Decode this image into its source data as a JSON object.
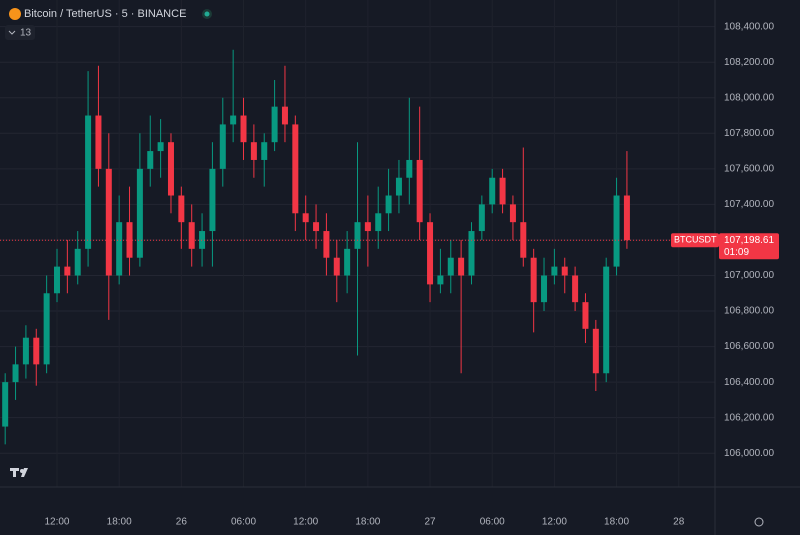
{
  "chart_data": {
    "type": "candlestick",
    "title": "Bitcoin / TetherUS · 5 · BINANCE",
    "indicators_label": "13",
    "symbol": "BTCUSDT",
    "last_price_label": "107,198.61",
    "countdown": "01:09",
    "up_color": "#089981",
    "down_color": "#f23645",
    "categories": [
      null,
      null,
      null,
      null,
      null,
      "12:00",
      null,
      null,
      null,
      null,
      null,
      "18:00",
      null,
      null,
      null,
      null,
      null,
      "26",
      null,
      null,
      null,
      null,
      null,
      "06:00",
      null,
      null,
      null,
      null,
      null,
      "12:00",
      null,
      null,
      null,
      null,
      null,
      "18:00",
      null,
      null,
      null,
      null,
      null,
      "27",
      null,
      null,
      null,
      null,
      null,
      "06:00",
      null,
      null,
      null,
      null,
      null,
      "12:00",
      null,
      null,
      null,
      null,
      null,
      "18:00",
      null,
      null,
      null,
      null,
      null,
      "28",
      null,
      null,
      null
    ],
    "open": [
      106150,
      106400,
      106500,
      106650,
      106500,
      106900,
      107050,
      107000,
      107150,
      107900,
      107600,
      107000,
      107300,
      107100,
      107600,
      107700,
      107750,
      107450,
      107300,
      107150,
      107250,
      107600,
      107850,
      107900,
      107750,
      107650,
      107750,
      107950,
      107850,
      107350,
      107300,
      107250,
      107100,
      107000,
      107150,
      107300,
      107250,
      107350,
      107450,
      107550,
      107650,
      107300,
      106950,
      107000,
      107100,
      107000,
      107250,
      107400,
      107550,
      107400,
      107300,
      107100,
      106850,
      107000,
      107050,
      107000,
      106850,
      106700,
      106450,
      107050,
      107450,
      null,
      null,
      null,
      null,
      null,
      null,
      null,
      null
    ],
    "high": [
      106450,
      106600,
      106720,
      106700,
      107000,
      107150,
      107200,
      107250,
      108150,
      108180,
      107800,
      107450,
      107500,
      107800,
      107900,
      107880,
      107800,
      107500,
      107400,
      107350,
      107750,
      108000,
      108270,
      108000,
      107850,
      107800,
      108100,
      108180,
      107900,
      107450,
      107400,
      107350,
      107200,
      107250,
      107750,
      107450,
      107500,
      107600,
      107650,
      108000,
      107950,
      107350,
      107150,
      107200,
      107200,
      107300,
      107450,
      107600,
      107600,
      107450,
      107720,
      107150,
      107100,
      107150,
      107100,
      107050,
      106900,
      106750,
      107100,
      107550,
      107700,
      null,
      null,
      null,
      null,
      null,
      null,
      null,
      null
    ],
    "low": [
      106050,
      106300,
      106420,
      106380,
      106450,
      106850,
      106900,
      106950,
      107050,
      107500,
      106750,
      106950,
      107000,
      107050,
      107500,
      107550,
      107350,
      107150,
      107050,
      107050,
      107050,
      107500,
      107750,
      107650,
      107550,
      107500,
      107700,
      107750,
      107250,
      107200,
      107150,
      107000,
      106850,
      106900,
      106550,
      107050,
      107150,
      107250,
      107350,
      107400,
      107200,
      106850,
      106900,
      106900,
      106450,
      106950,
      107200,
      107350,
      107350,
      107200,
      107050,
      106680,
      106800,
      106950,
      106900,
      106800,
      106620,
      106350,
      106400,
      107000,
      107150,
      null,
      null,
      null,
      null,
      null,
      null,
      null,
      null
    ],
    "close": [
      106400,
      106500,
      106650,
      106500,
      106900,
      107050,
      107000,
      107150,
      107900,
      107600,
      107000,
      107300,
      107100,
      107600,
      107700,
      107750,
      107450,
      107300,
      107150,
      107250,
      107600,
      107850,
      107900,
      107750,
      107650,
      107750,
      107950,
      107850,
      107350,
      107300,
      107250,
      107100,
      107000,
      107150,
      107300,
      107250,
      107350,
      107450,
      107550,
      107650,
      107300,
      106950,
      107000,
      107100,
      107000,
      107250,
      107400,
      107550,
      107400,
      107300,
      107100,
      106850,
      107000,
      107050,
      107000,
      106850,
      106700,
      106450,
      107050,
      107450,
      107198.61,
      null,
      null,
      null,
      null,
      null,
      null,
      null,
      null
    ],
    "ylim": [
      105810,
      108550
    ],
    "yticks": [
      {
        "value": 108400,
        "label": "108,400.00"
      },
      {
        "value": 108200,
        "label": "108,200.00"
      },
      {
        "value": 108000,
        "label": "108,000.00"
      },
      {
        "value": 107800,
        "label": "107,800.00"
      },
      {
        "value": 107600,
        "label": "107,600.00"
      },
      {
        "value": 107400,
        "label": "107,400.00"
      },
      {
        "value": 107200,
        "label": "107,200.00"
      },
      {
        "value": 107000,
        "label": "107,000.00"
      },
      {
        "value": 106800,
        "label": "106,800.00"
      },
      {
        "value": 106600,
        "label": "106,600.00"
      },
      {
        "value": 106400,
        "label": "106,400.00"
      },
      {
        "value": 106200,
        "label": "106,200.00"
      },
      {
        "value": 106000,
        "label": "106,000.00"
      }
    ],
    "grid": true
  }
}
